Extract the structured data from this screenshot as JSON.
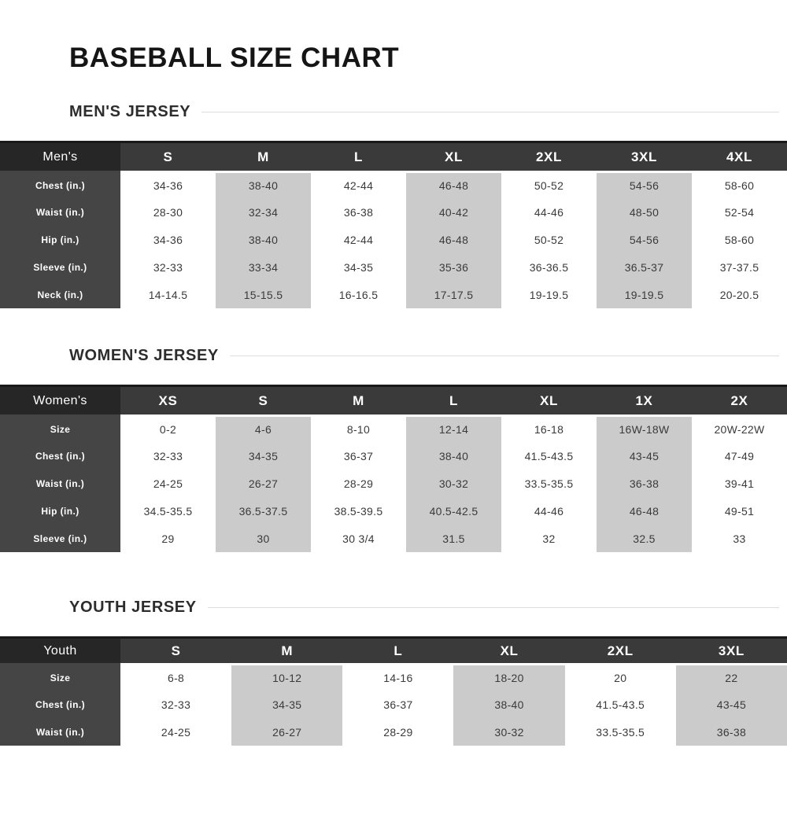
{
  "title": "BASEBALL SIZE CHART",
  "colors": {
    "header_bg": "#3a3a3a",
    "header_corner_bg": "#262626",
    "header_top_border": "#191919",
    "row_label_bg": "#454545",
    "alt_column_bg": "#cbcbcb",
    "body_text": "#3a3a3a",
    "section_rule": "#dedede"
  },
  "tables": [
    {
      "section_title": "MEN'S JERSEY",
      "label": "Men's",
      "sizes": [
        "S",
        "M",
        "L",
        "XL",
        "2XL",
        "3XL",
        "4XL"
      ],
      "rows": [
        {
          "label": "Chest (in.)",
          "values": [
            "34-36",
            "38-40",
            "42-44",
            "46-48",
            "50-52",
            "54-56",
            "58-60"
          ]
        },
        {
          "label": "Waist (in.)",
          "values": [
            "28-30",
            "32-34",
            "36-38",
            "40-42",
            "44-46",
            "48-50",
            "52-54"
          ]
        },
        {
          "label": "Hip (in.)",
          "values": [
            "34-36",
            "38-40",
            "42-44",
            "46-48",
            "50-52",
            "54-56",
            "58-60"
          ]
        },
        {
          "label": "Sleeve (in.)",
          "values": [
            "32-33",
            "33-34",
            "34-35",
            "35-36",
            "36-36.5",
            "36.5-37",
            "37-37.5"
          ]
        },
        {
          "label": "Neck (in.)",
          "values": [
            "14-14.5",
            "15-15.5",
            "16-16.5",
            "17-17.5",
            "19-19.5",
            "19-19.5",
            "20-20.5"
          ]
        }
      ]
    },
    {
      "section_title": "WOMEN'S JERSEY",
      "label": "Women's",
      "sizes": [
        "XS",
        "S",
        "M",
        "L",
        "XL",
        "1X",
        "2X"
      ],
      "rows": [
        {
          "label": "Size",
          "values": [
            "0-2",
            "4-6",
            "8-10",
            "12-14",
            "16-18",
            "16W-18W",
            "20W-22W"
          ]
        },
        {
          "label": "Chest (in.)",
          "values": [
            "32-33",
            "34-35",
            "36-37",
            "38-40",
            "41.5-43.5",
            "43-45",
            "47-49"
          ]
        },
        {
          "label": "Waist (in.)",
          "values": [
            "24-25",
            "26-27",
            "28-29",
            "30-32",
            "33.5-35.5",
            "36-38",
            "39-41"
          ]
        },
        {
          "label": "Hip (in.)",
          "values": [
            "34.5-35.5",
            "36.5-37.5",
            "38.5-39.5",
            "40.5-42.5",
            "44-46",
            "46-48",
            "49-51"
          ]
        },
        {
          "label": "Sleeve (in.)",
          "values": [
            "29",
            "30",
            "30 3/4",
            "31.5",
            "32",
            "32.5",
            "33"
          ]
        }
      ]
    },
    {
      "section_title": "YOUTH JERSEY",
      "label": "Youth",
      "sizes": [
        "S",
        "M",
        "L",
        "XL",
        "2XL",
        "3XL"
      ],
      "rows": [
        {
          "label": "Size",
          "values": [
            "6-8",
            "10-12",
            "14-16",
            "18-20",
            "20",
            "22"
          ]
        },
        {
          "label": "Chest (in.)",
          "values": [
            "32-33",
            "34-35",
            "36-37",
            "38-40",
            "41.5-43.5",
            "43-45"
          ]
        },
        {
          "label": "Waist (in.)",
          "values": [
            "24-25",
            "26-27",
            "28-29",
            "30-32",
            "33.5-35.5",
            "36-38"
          ]
        }
      ]
    }
  ]
}
